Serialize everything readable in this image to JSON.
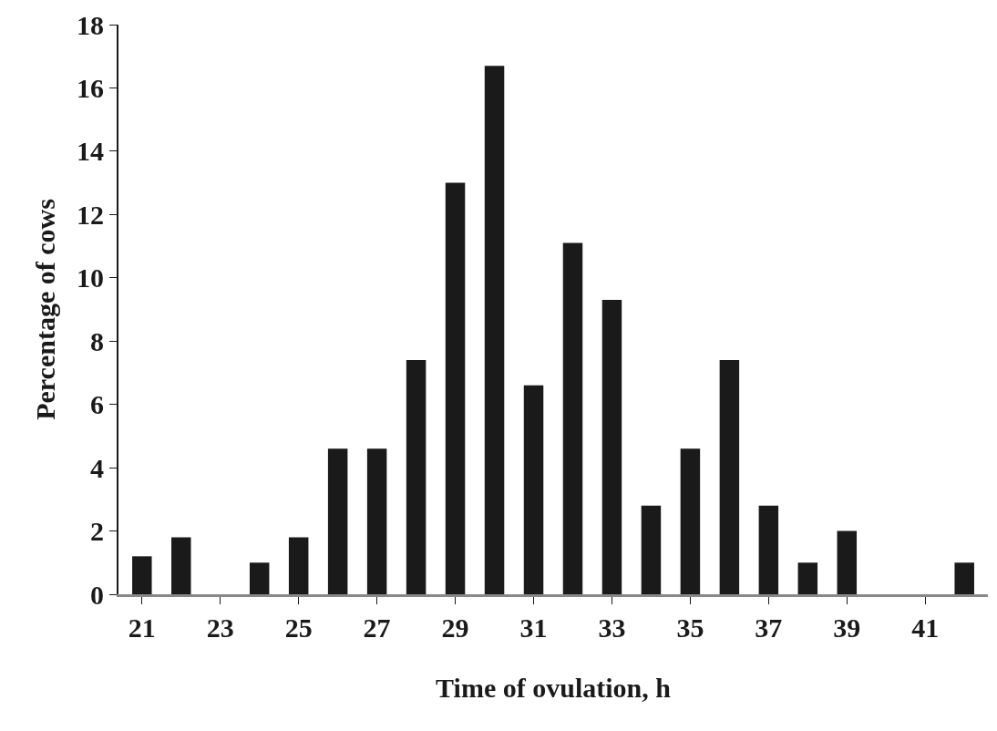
{
  "chart_data": {
    "type": "bar",
    "xlabel": "Time of ovulation, h",
    "ylabel": "Percentage of cows",
    "categories": [
      "21",
      null,
      "23",
      null,
      "25",
      null,
      "27",
      null,
      "29",
      null,
      "31",
      null,
      "33",
      null,
      "35",
      null,
      "37",
      null,
      "39",
      null,
      "41",
      null
    ],
    "values": [
      1.2,
      1.8,
      0,
      1,
      1.8,
      4.6,
      4.6,
      7.4,
      13,
      16.7,
      6.6,
      11.1,
      9.3,
      2.8,
      4.6,
      7.4,
      2.8,
      1,
      2,
      0,
      0,
      1
    ],
    "color": "#1a1a1a",
    "ylim": [
      0,
      18
    ],
    "yticks": [
      0,
      2,
      4,
      6,
      8,
      10,
      12,
      14,
      16,
      18
    ],
    "legend": false
  }
}
